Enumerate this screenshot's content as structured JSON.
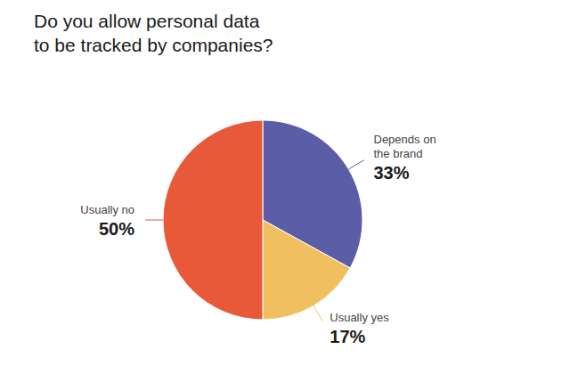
{
  "chart_data": {
    "type": "pie",
    "title": "Do you allow personal data\nto be tracked by companies?",
    "categories": [
      "Depends on\nthe brand",
      "Usually yes",
      "Usually no"
    ],
    "values": [
      33,
      17,
      50
    ],
    "value_labels": [
      "33%",
      "17%",
      "50%"
    ],
    "colors": [
      "#5B5EA6",
      "#F0C060",
      "#E8593A"
    ],
    "data_labels": true
  }
}
